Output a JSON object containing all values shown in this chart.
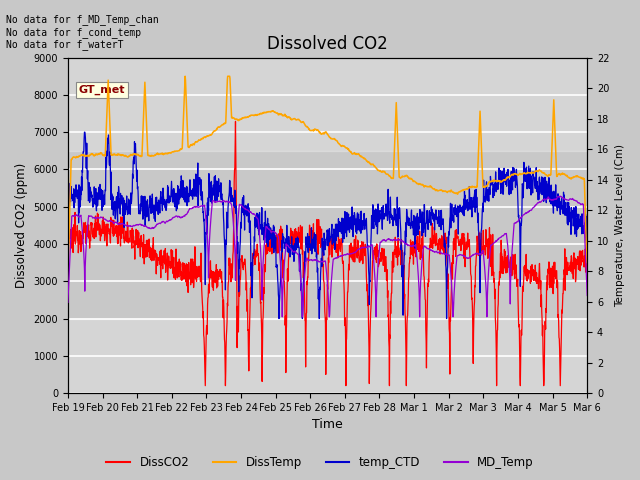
{
  "title": "Dissolved CO2",
  "xlabel": "Time",
  "ylabel_left": "Dissolved CO2 (ppm)",
  "ylabel_right": "Temperature, Water Level (Cm)",
  "ylim_left": [
    0,
    9000
  ],
  "ylim_right": [
    0,
    22
  ],
  "annotation_lines": [
    "No data for f_MD_Temp_chan",
    "No data for f_cond_temp",
    "No data for f_waterT"
  ],
  "legend_entries": [
    "DissCO2",
    "DissTemp",
    "temp_CTD",
    "MD_Temp"
  ],
  "legend_colors": [
    "#ff0000",
    "#ffa500",
    "#0000cd",
    "#9400d3"
  ],
  "gt_met_label": "GT_met",
  "background_color": "#c8c8c8",
  "plot_bg_color": "#c8c8c8",
  "grid_color": "#ffffff",
  "note_fontsize": 8,
  "title_fontsize": 12,
  "yticks_left": [
    0,
    1000,
    2000,
    3000,
    4000,
    5000,
    6000,
    7000,
    8000,
    9000
  ],
  "yticks_right": [
    0,
    2,
    4,
    6,
    8,
    10,
    12,
    14,
    16,
    18,
    20,
    22
  ],
  "xtick_labels": [
    "Feb 19",
    "Feb 20",
    "Feb 21",
    "Feb 22",
    "Feb 23",
    "Feb 24",
    "Feb 25",
    "Feb 26",
    "Feb 27",
    "Feb 28",
    "Mar 1",
    "Mar 2",
    "Mar 3",
    "Mar 4",
    "Mar 5",
    "Mar 6"
  ]
}
